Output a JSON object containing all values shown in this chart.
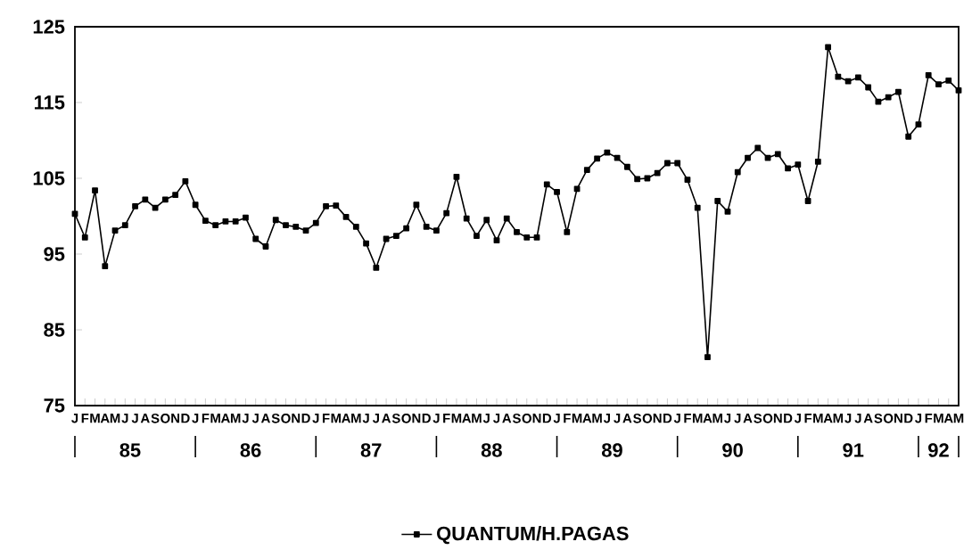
{
  "chart_data": {
    "type": "line",
    "categories": [
      "J",
      "F",
      "M",
      "A",
      "M",
      "J",
      "J",
      "A",
      "S",
      "O",
      "N",
      "D",
      "J",
      "F",
      "M",
      "A",
      "M",
      "J",
      "J",
      "A",
      "S",
      "O",
      "N",
      "D",
      "J",
      "F",
      "M",
      "A",
      "M",
      "J",
      "J",
      "A",
      "S",
      "O",
      "N",
      "D",
      "J",
      "F",
      "M",
      "A",
      "M",
      "J",
      "J",
      "A",
      "S",
      "O",
      "N",
      "D",
      "J",
      "F",
      "M",
      "A",
      "M",
      "J",
      "J",
      "A",
      "S",
      "O",
      "N",
      "D",
      "J",
      "F",
      "M",
      "A",
      "M",
      "J",
      "J",
      "A",
      "S",
      "O",
      "N",
      "D",
      "J",
      "F",
      "M",
      "A",
      "M",
      "J",
      "J",
      "A",
      "S",
      "O",
      "N",
      "D",
      "J",
      "F",
      "M",
      "A",
      "M"
    ],
    "series": [
      {
        "name": "QUANTUM/H.PAGAS",
        "color": "#000000",
        "values": [
          100.3,
          97.2,
          103.4,
          93.4,
          98.1,
          98.8,
          101.3,
          102.2,
          101.1,
          102.2,
          102.8,
          104.6,
          101.5,
          99.4,
          98.8,
          99.3,
          99.3,
          99.8,
          97.0,
          96.0,
          99.5,
          98.8,
          98.6,
          98.1,
          99.1,
          101.3,
          101.4,
          99.9,
          98.6,
          96.4,
          93.2,
          97.0,
          97.4,
          98.4,
          101.5,
          98.6,
          98.1,
          100.4,
          105.2,
          99.7,
          97.4,
          99.5,
          96.8,
          99.7,
          97.9,
          97.2,
          97.2,
          104.2,
          103.2,
          97.9,
          103.6,
          106.1,
          107.6,
          108.4,
          107.7,
          106.5,
          104.9,
          105.0,
          105.7,
          107.0,
          107.0,
          104.8,
          101.1,
          81.4,
          102.0,
          100.6,
          105.8,
          107.7,
          109.0,
          107.7,
          108.2,
          106.3,
          106.8,
          102.0,
          107.2,
          122.3,
          118.4,
          117.8,
          118.3,
          117.0,
          115.1,
          115.7,
          116.4,
          110.5,
          112.1,
          118.6,
          117.4,
          117.9,
          116.6
        ]
      }
    ],
    "annotations": [
      "85",
      "86",
      "87",
      "88",
      "89",
      "90",
      "91",
      "92"
    ],
    "ylim": [
      75,
      125
    ],
    "yticks": [
      75,
      85,
      95,
      105,
      115,
      125
    ],
    "grid": false,
    "legend": "bottom",
    "marker": "square",
    "line_style": "solid"
  }
}
